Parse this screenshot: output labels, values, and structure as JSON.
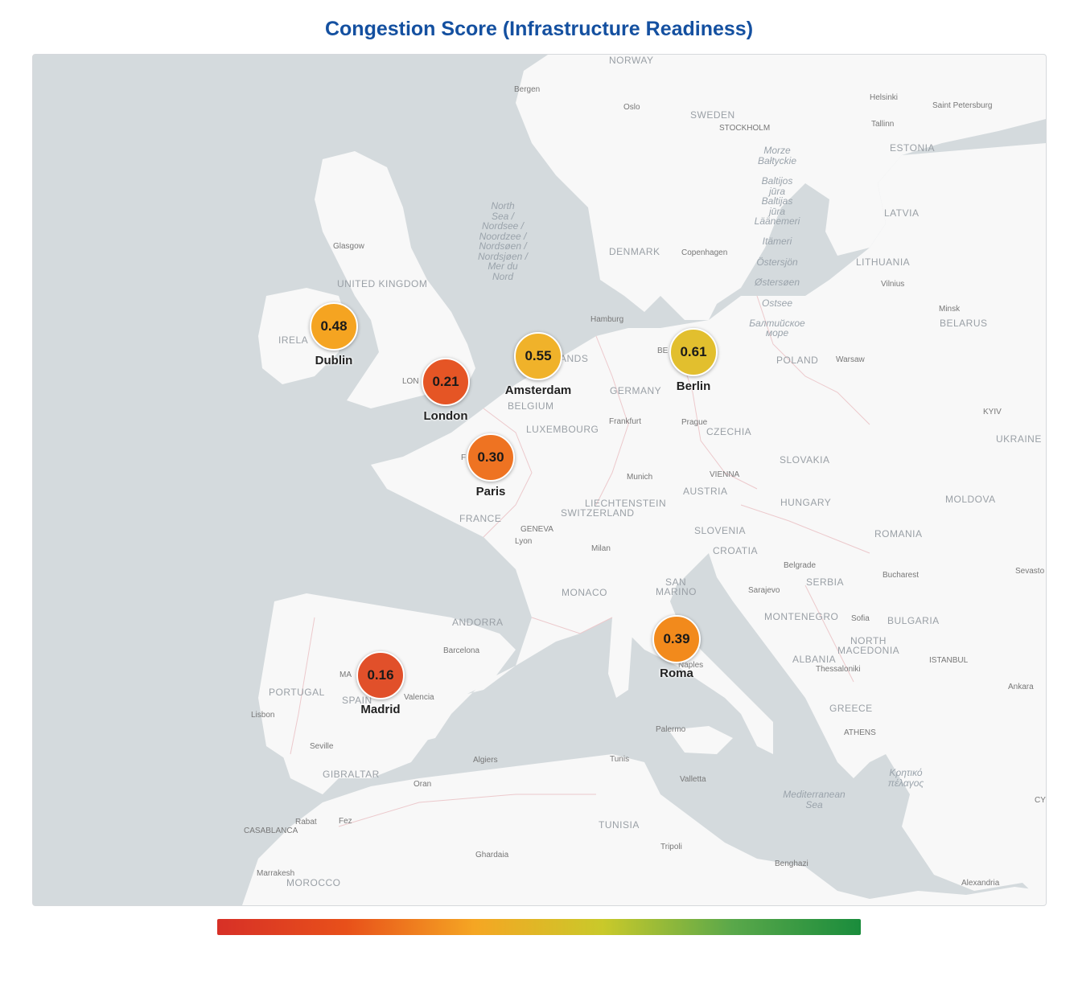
{
  "title": "Congestion Score (Infrastructure Readiness)",
  "colors": {
    "water": "#d4dadd",
    "land": "#f8f8f8",
    "title": "#1450a0",
    "legend_low": "#d73027",
    "legend_high": "#1a8c3c"
  },
  "cities": [
    {
      "name": "Dublin",
      "score": "0.48",
      "color": "#f5a421"
    },
    {
      "name": "London",
      "score": "0.21",
      "color": "#e55525"
    },
    {
      "name": "Amsterdam",
      "score": "0.55",
      "color": "#f0b22a"
    },
    {
      "name": "Berlin",
      "score": "0.61",
      "color": "#e2bf2e"
    },
    {
      "name": "Paris",
      "score": "0.30",
      "color": "#ee7322"
    },
    {
      "name": "Roma",
      "score": "0.39",
      "color": "#f28a1c"
    },
    {
      "name": "Madrid",
      "score": "0.16",
      "color": "#e1502a"
    }
  ],
  "basemap_labels": {
    "countries": [
      "NORWAY",
      "SWEDEN",
      "ESTONIA",
      "LATVIA",
      "LITHUANIA",
      "BELARUS",
      "UNITED KINGDOM",
      "IRELA",
      "DENMARK",
      "POLAND",
      "GERMANY",
      "BELGIUM",
      "LUXEMBOURG",
      "CZECHIA",
      "UKRAINE",
      "SLOVAKIA",
      "AUSTRIA",
      "HUNGARY",
      "MOLDOVA",
      "LIECHTENSTEIN",
      "SWITZERLAND",
      "FRANCE",
      "SLOVENIA",
      "ROMANIA",
      "CROATIA",
      "SAN",
      "MARINO",
      "SERBIA",
      "MONACO",
      "ANDORRA",
      "MONTENEGRO",
      "BULGARIA",
      "NORTH",
      "MACEDONIA",
      "ALBANIA",
      "PORTUGAL",
      "SPAIN",
      "GREECE",
      "GIBRALTAR",
      "TUNISIA",
      "MOROCCO",
      "ANDS"
    ],
    "cities": [
      "Bergen",
      "Oslo",
      "STOCKHOLM",
      "Helsinki",
      "Saint Petersburg",
      "Tallinn",
      "Glasgow",
      "Copenhagen",
      "Vilnius",
      "Minsk",
      "Hamburg",
      "Warsaw",
      "KYIV",
      "Frankfurt",
      "Prague",
      "VIENNA",
      "Munich",
      "GENEVA",
      "Lyon",
      "Milan",
      "Belgrade",
      "Bucharest",
      "Sevasto",
      "Sarajevo",
      "Sofia",
      "ISTANBUL",
      "Thessaloniki",
      "Ankara",
      "Barcelona",
      "Valencia",
      "Naples",
      "Lisbon",
      "Seville",
      "Palermo",
      "ATHENS",
      "Algiers",
      "Tunis",
      "Valletta",
      "Oran",
      "Rabat",
      "Fez",
      "CASABLANCA",
      "Ghardaia",
      "Tripoli",
      "Benghazi",
      "Marrakesh",
      "Alexandria",
      "LON",
      "MA",
      "BE",
      "F",
      "CY"
    ],
    "seas": [
      "North",
      "Sea /",
      "Nordsee /",
      "Noordzee /",
      "Nordsøen /",
      "Nordsjøen /",
      "Mer du",
      "Nord",
      "Morze",
      "Bałtyckie",
      "Baltijos",
      "jūra",
      "Baltijas",
      "jūra",
      "Läänemeri",
      "Itämeri",
      "Östersjön",
      "Østersøen",
      "Ostsee",
      "Балтийское",
      "море",
      "Mediterranean",
      "Sea",
      "Κρητικό",
      "πέλαγος"
    ]
  }
}
